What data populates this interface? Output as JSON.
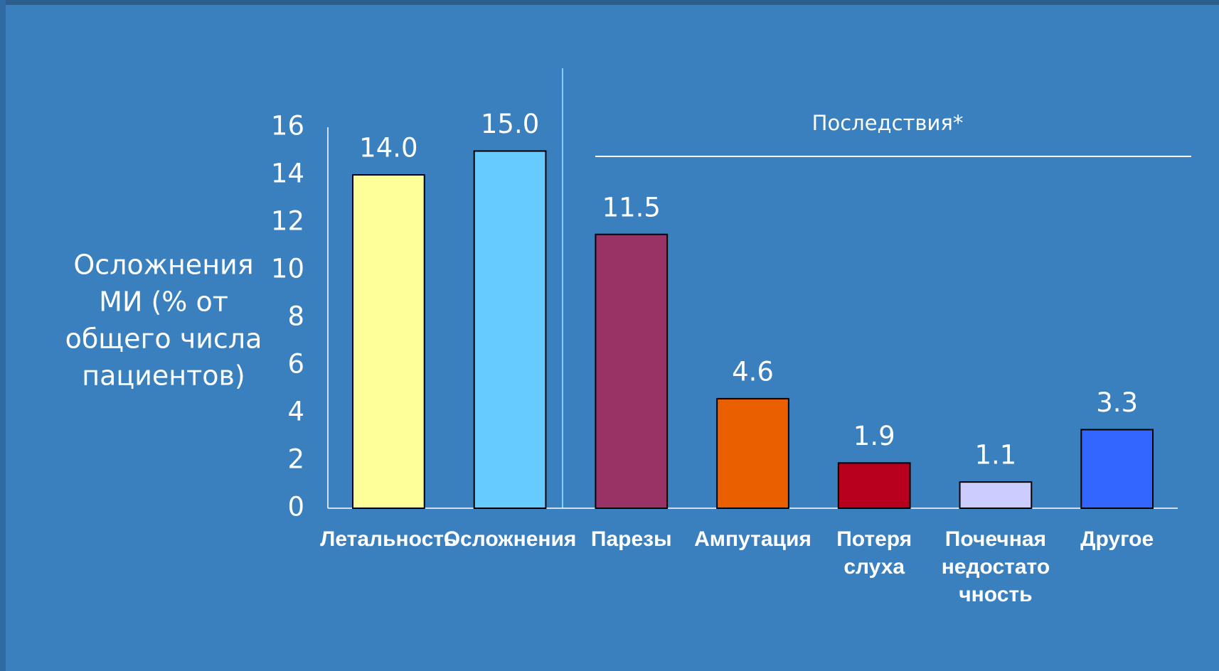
{
  "chart_data": {
    "type": "bar",
    "y_label": [
      "Осложнения",
      "МИ (% от",
      "общего числа",
      "пациентов)"
    ],
    "annotation": "Последствия*",
    "categories": [
      [
        "Летальность"
      ],
      [
        "Осложнения"
      ],
      [
        "Парезы"
      ],
      [
        "Ампутация"
      ],
      [
        "Потеря",
        "слуха"
      ],
      [
        "Почечная",
        "недостато",
        "чность"
      ],
      [
        "Другое"
      ]
    ],
    "values": [
      14.0,
      15.0,
      11.5,
      4.6,
      1.9,
      1.1,
      3.3
    ],
    "value_labels": [
      "14.0",
      "15.0",
      "11.5",
      "4.6",
      "1.9",
      "1.1",
      "3.3"
    ],
    "colors": [
      "#ffff99",
      "#66ccff",
      "#993366",
      "#ea6000",
      "#b8001e",
      "#ccccff",
      "#3366ff"
    ],
    "ylim": [
      0,
      16
    ],
    "yticks": [
      0,
      2,
      4,
      6,
      8,
      10,
      12,
      14,
      16
    ],
    "grid": false
  }
}
